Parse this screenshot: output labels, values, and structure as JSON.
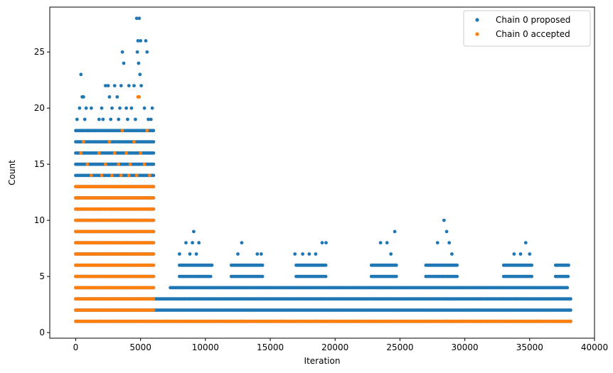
{
  "chart_data": {
    "type": "scatter",
    "title": "",
    "xlabel": "Iteration",
    "ylabel": "Count",
    "xlim": [
      -2000,
      40000
    ],
    "ylim": [
      -0.5,
      29
    ],
    "x_ticks": [
      0,
      5000,
      10000,
      15000,
      20000,
      25000,
      30000,
      35000,
      40000
    ],
    "x_tick_labels": [
      "0",
      "5000",
      "10000",
      "15000",
      "20000",
      "25000",
      "30000",
      "35000",
      "40000"
    ],
    "y_ticks": [
      0,
      5,
      10,
      15,
      20,
      25
    ],
    "y_tick_labels": [
      "0",
      "5",
      "10",
      "15",
      "20",
      "25"
    ],
    "grid": false,
    "legend_position": "top-right",
    "colors": {
      "proposed": "#1f77b4",
      "accepted": "#ff7f0e",
      "axis": "#000000",
      "legend_border": "#cccccc"
    },
    "series": [
      {
        "name": "Chain 0 proposed",
        "color": "#1f77b4",
        "segments": [
          {
            "x_start": 0,
            "x_end": 6000,
            "y_values": [
              1,
              2,
              3,
              4,
              5,
              6,
              7,
              8,
              9,
              10,
              11,
              12,
              13,
              14,
              15,
              16,
              17,
              18
            ]
          },
          {
            "x_start": 6000,
            "x_end": 38200,
            "y_values": [
              1,
              2,
              3
            ]
          },
          {
            "x_start": 7300,
            "x_end": 38000,
            "y_values": [
              4
            ]
          },
          {
            "x_start": 8000,
            "x_end": 10500,
            "y_values": [
              5,
              6
            ]
          },
          {
            "x_start": 12000,
            "x_end": 14500,
            "y_values": [
              5,
              6
            ]
          },
          {
            "x_start": 17000,
            "x_end": 19300,
            "y_values": [
              5,
              6
            ]
          },
          {
            "x_start": 22800,
            "x_end": 24800,
            "y_values": [
              5,
              6
            ]
          },
          {
            "x_start": 27000,
            "x_end": 29500,
            "y_values": [
              5,
              6
            ]
          },
          {
            "x_start": 33000,
            "x_end": 35200,
            "y_values": [
              5,
              6
            ]
          },
          {
            "x_start": 37000,
            "x_end": 38000,
            "y_values": [
              5,
              6
            ]
          }
        ],
        "points": [
          {
            "x": 400,
            "y": 23
          },
          {
            "x": 300,
            "y": 20
          },
          {
            "x": 500,
            "y": 21
          },
          {
            "x": 600,
            "y": 21
          },
          {
            "x": 100,
            "y": 19
          },
          {
            "x": 800,
            "y": 20
          },
          {
            "x": 1200,
            "y": 20
          },
          {
            "x": 700,
            "y": 19
          },
          {
            "x": 1800,
            "y": 19
          },
          {
            "x": 2000,
            "y": 20
          },
          {
            "x": 2300,
            "y": 22
          },
          {
            "x": 2500,
            "y": 22
          },
          {
            "x": 2600,
            "y": 21
          },
          {
            "x": 2800,
            "y": 20
          },
          {
            "x": 3000,
            "y": 22
          },
          {
            "x": 3200,
            "y": 21
          },
          {
            "x": 3400,
            "y": 20
          },
          {
            "x": 3500,
            "y": 22
          },
          {
            "x": 3600,
            "y": 25
          },
          {
            "x": 3700,
            "y": 24
          },
          {
            "x": 3900,
            "y": 20
          },
          {
            "x": 4100,
            "y": 22
          },
          {
            "x": 4300,
            "y": 20
          },
          {
            "x": 4500,
            "y": 22
          },
          {
            "x": 4700,
            "y": 28
          },
          {
            "x": 4800,
            "y": 26
          },
          {
            "x": 4900,
            "y": 28
          },
          {
            "x": 5000,
            "y": 26
          },
          {
            "x": 4750,
            "y": 25
          },
          {
            "x": 4850,
            "y": 24
          },
          {
            "x": 4950,
            "y": 23
          },
          {
            "x": 5050,
            "y": 22
          },
          {
            "x": 5400,
            "y": 26
          },
          {
            "x": 5500,
            "y": 25
          },
          {
            "x": 5300,
            "y": 20
          },
          {
            "x": 5600,
            "y": 19
          },
          {
            "x": 5900,
            "y": 20
          },
          {
            "x": 5800,
            "y": 19
          },
          {
            "x": 2100,
            "y": 19
          },
          {
            "x": 2700,
            "y": 19
          },
          {
            "x": 3300,
            "y": 19
          },
          {
            "x": 4000,
            "y": 19
          },
          {
            "x": 4600,
            "y": 19
          },
          {
            "x": 4400,
            "y": 18
          },
          {
            "x": 1500,
            "y": 18
          },
          {
            "x": 900,
            "y": 18
          },
          {
            "x": 8000,
            "y": 7
          },
          {
            "x": 8500,
            "y": 8
          },
          {
            "x": 8800,
            "y": 7
          },
          {
            "x": 9000,
            "y": 8
          },
          {
            "x": 9100,
            "y": 9
          },
          {
            "x": 9300,
            "y": 7
          },
          {
            "x": 9500,
            "y": 8
          },
          {
            "x": 10500,
            "y": 6
          },
          {
            "x": 12800,
            "y": 8
          },
          {
            "x": 12500,
            "y": 7
          },
          {
            "x": 14000,
            "y": 7
          },
          {
            "x": 14300,
            "y": 7
          },
          {
            "x": 16900,
            "y": 7
          },
          {
            "x": 17500,
            "y": 7
          },
          {
            "x": 18000,
            "y": 7
          },
          {
            "x": 18500,
            "y": 7
          },
          {
            "x": 19000,
            "y": 8
          },
          {
            "x": 19300,
            "y": 8
          },
          {
            "x": 23500,
            "y": 8
          },
          {
            "x": 24000,
            "y": 8
          },
          {
            "x": 24300,
            "y": 7
          },
          {
            "x": 24600,
            "y": 9
          },
          {
            "x": 27900,
            "y": 8
          },
          {
            "x": 28400,
            "y": 10
          },
          {
            "x": 28600,
            "y": 9
          },
          {
            "x": 28800,
            "y": 8
          },
          {
            "x": 29000,
            "y": 7
          },
          {
            "x": 33800,
            "y": 7
          },
          {
            "x": 34300,
            "y": 7
          },
          {
            "x": 34700,
            "y": 8
          },
          {
            "x": 35000,
            "y": 7
          },
          {
            "x": 37700,
            "y": 6
          },
          {
            "x": 38000,
            "y": 6
          }
        ]
      },
      {
        "name": "Chain 0 accepted",
        "color": "#ff7f0e",
        "segments": [
          {
            "x_start": 0,
            "x_end": 6000,
            "y_values": [
              1,
              2,
              3,
              4,
              5,
              6,
              7,
              8,
              9,
              10,
              11,
              12,
              13
            ]
          },
          {
            "x_start": 6000,
            "x_end": 38200,
            "y_values": [
              1
            ]
          }
        ],
        "points": [
          {
            "x": 400,
            "y": 16
          },
          {
            "x": 600,
            "y": 17
          },
          {
            "x": 1200,
            "y": 14
          },
          {
            "x": 1800,
            "y": 16
          },
          {
            "x": 2300,
            "y": 15
          },
          {
            "x": 2600,
            "y": 17
          },
          {
            "x": 3000,
            "y": 16
          },
          {
            "x": 3300,
            "y": 15
          },
          {
            "x": 3600,
            "y": 18
          },
          {
            "x": 3900,
            "y": 16
          },
          {
            "x": 4200,
            "y": 15
          },
          {
            "x": 4500,
            "y": 17
          },
          {
            "x": 4800,
            "y": 21
          },
          {
            "x": 4900,
            "y": 21
          },
          {
            "x": 5000,
            "y": 16
          },
          {
            "x": 5300,
            "y": 15
          },
          {
            "x": 5500,
            "y": 18
          },
          {
            "x": 5700,
            "y": 14
          },
          {
            "x": 2000,
            "y": 14
          },
          {
            "x": 2800,
            "y": 14
          },
          {
            "x": 3500,
            "y": 14
          },
          {
            "x": 4100,
            "y": 14
          },
          {
            "x": 4700,
            "y": 14
          },
          {
            "x": 900,
            "y": 15
          }
        ]
      }
    ]
  }
}
